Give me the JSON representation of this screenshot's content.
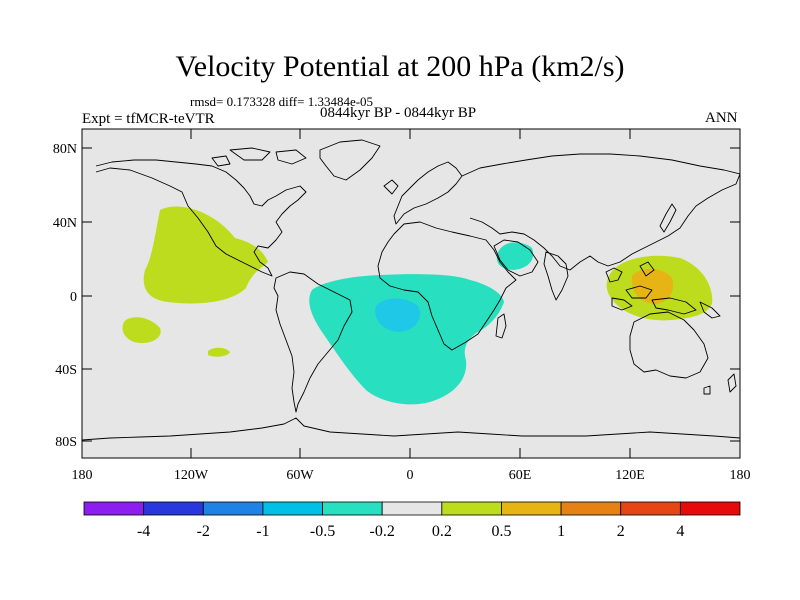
{
  "title": "Velocity Potential at 200 hPa (km2/s)",
  "stats_line": "rmsd= 0.173328 diff= 1.33484e-05",
  "experiment": "Expt = tfMCR-teVTR",
  "period": "0844kyr BP - 0844kyr BP",
  "season": "ANN",
  "lat_ticks": [
    "80N",
    "40N",
    "0",
    "40S",
    "80S"
  ],
  "lon_ticks": [
    "180",
    "120W",
    "60W",
    "0",
    "60E",
    "120E",
    "180"
  ],
  "colorbar": {
    "colors": [
      "#8c1ef0",
      "#2838dc",
      "#1e82e6",
      "#00c0e8",
      "#28e0c0",
      "#e6e6e6",
      "#bedc1e",
      "#e6b414",
      "#e68214",
      "#e64614",
      "#e60a0a"
    ],
    "labels": [
      "-4",
      "-2",
      "-1",
      "-0.5",
      "-0.2",
      "0.2",
      "0.5",
      "1",
      "2",
      "4"
    ]
  },
  "colors": {
    "background": "#e6e6e6",
    "positive_low": "#bedc1e",
    "positive_mid": "#e6b414",
    "negative_low": "#28e0c0",
    "negative_mid": "#1ec8e6"
  }
}
